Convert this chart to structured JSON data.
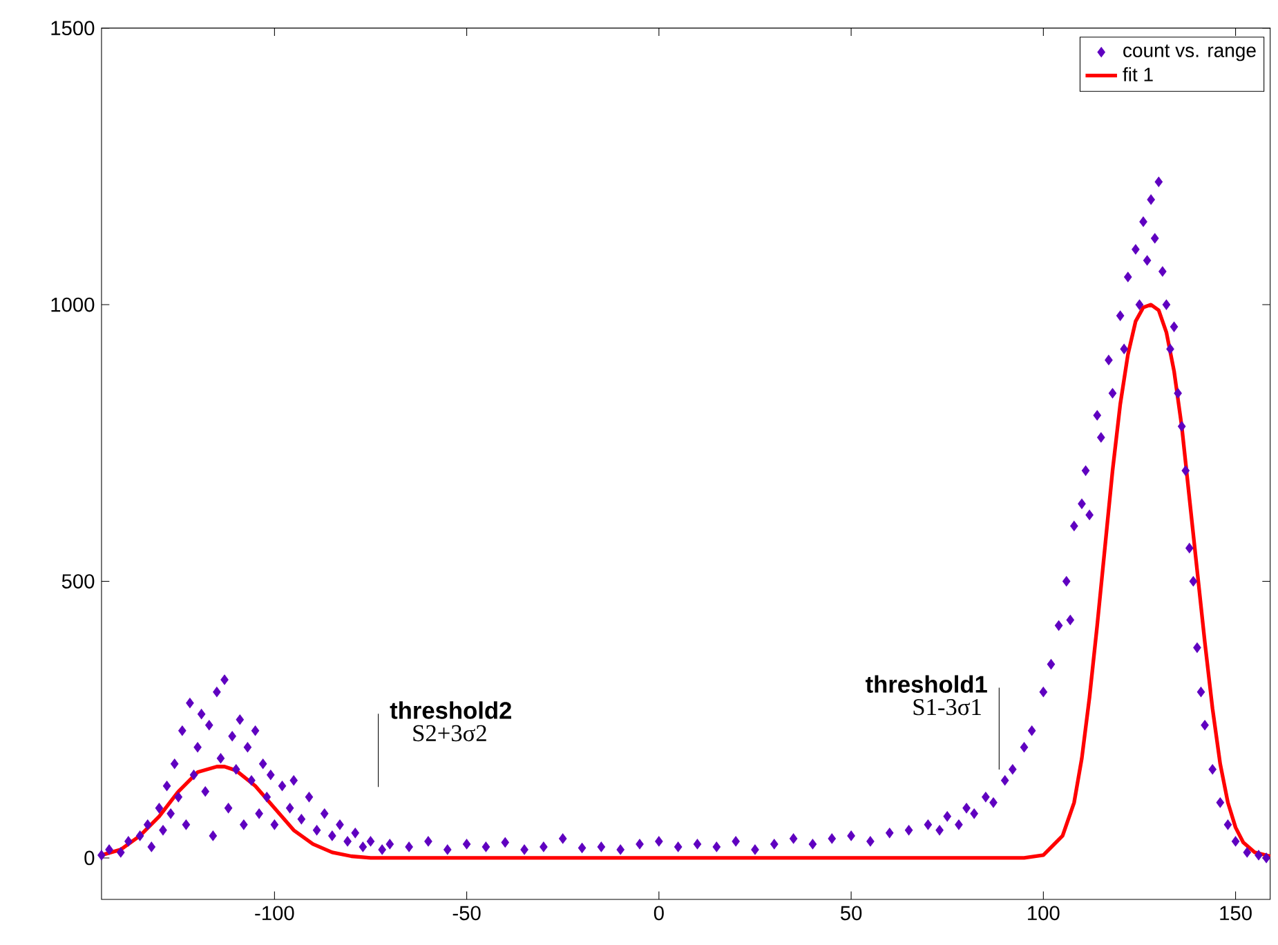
{
  "chart_data": {
    "type": "scatter",
    "xlim": [
      -145,
      159
    ],
    "ylim": [
      -75,
      1500
    ],
    "xticks": [
      -100,
      -50,
      0,
      50,
      100,
      150
    ],
    "yticks": [
      0,
      500,
      1000,
      1500
    ],
    "legend": "top right",
    "grid": false,
    "series": [
      {
        "name": "count vs. range",
        "marker": "diamond",
        "color": "#5f00c0",
        "x": [
          -145,
          -143,
          -140,
          -138,
          -135,
          -133,
          -132,
          -130,
          -129,
          -128,
          -127,
          -126,
          -125,
          -124,
          -123,
          -122,
          -121,
          -120,
          -119,
          -118,
          -117,
          -116,
          -115,
          -114,
          -113,
          -112,
          -111,
          -110,
          -109,
          -108,
          -107,
          -106,
          -105,
          -104,
          -103,
          -102,
          -101,
          -100,
          -98,
          -96,
          -95,
          -93,
          -91,
          -89,
          -87,
          -85,
          -83,
          -81,
          -79,
          -77,
          -75,
          -72,
          -70,
          -65,
          -60,
          -55,
          -50,
          -45,
          -40,
          -35,
          -30,
          -25,
          -20,
          -15,
          -10,
          -5,
          0,
          5,
          10,
          15,
          20,
          25,
          30,
          35,
          40,
          45,
          50,
          55,
          60,
          65,
          70,
          73,
          75,
          78,
          80,
          82,
          85,
          87,
          90,
          92,
          95,
          97,
          100,
          102,
          104,
          106,
          107,
          108,
          110,
          111,
          112,
          114,
          115,
          117,
          118,
          120,
          121,
          122,
          124,
          125,
          126,
          127,
          128,
          129,
          130,
          131,
          132,
          133,
          134,
          135,
          136,
          137,
          138,
          139,
          140,
          141,
          142,
          144,
          146,
          148,
          150,
          153,
          156,
          158
        ],
        "values": [
          5,
          15,
          10,
          30,
          40,
          60,
          20,
          90,
          50,
          130,
          80,
          170,
          110,
          230,
          60,
          280,
          150,
          200,
          260,
          120,
          240,
          40,
          300,
          180,
          322,
          90,
          220,
          160,
          250,
          60,
          200,
          140,
          230,
          80,
          170,
          110,
          150,
          60,
          130,
          90,
          140,
          70,
          110,
          50,
          80,
          40,
          60,
          30,
          45,
          20,
          30,
          15,
          25,
          20,
          30,
          15,
          25,
          20,
          28,
          15,
          20,
          35,
          18,
          20,
          15,
          25,
          30,
          20,
          25,
          20,
          30,
          15,
          25,
          35,
          25,
          35,
          40,
          30,
          45,
          50,
          60,
          50,
          75,
          60,
          90,
          80,
          110,
          100,
          140,
          160,
          200,
          230,
          300,
          350,
          420,
          500,
          430,
          600,
          640,
          700,
          620,
          800,
          760,
          900,
          840,
          980,
          920,
          1050,
          1100,
          1000,
          1150,
          1080,
          1190,
          1120,
          1222,
          1060,
          1000,
          920,
          960,
          840,
          780,
          700,
          560,
          500,
          380,
          300,
          240,
          160,
          100,
          60,
          30,
          10,
          5,
          0
        ]
      },
      {
        "name": "fit 1",
        "type": "line",
        "line_style": "solid",
        "marker": "none",
        "color": "#ff0000",
        "x": [
          -145,
          -140,
          -135,
          -130,
          -125,
          -120,
          -115,
          -113,
          -110,
          -105,
          -100,
          -95,
          -90,
          -85,
          -80,
          -75,
          -50,
          0,
          50,
          95,
          100,
          105,
          108,
          110,
          112,
          114,
          116,
          118,
          120,
          122,
          124,
          126,
          128,
          130,
          132,
          134,
          136,
          138,
          140,
          142,
          144,
          146,
          148,
          150,
          152,
          155,
          159
        ],
        "values": [
          5,
          15,
          40,
          75,
          120,
          155,
          165,
          165,
          158,
          130,
          90,
          50,
          25,
          10,
          3,
          0,
          0,
          0,
          0,
          0,
          5,
          40,
          100,
          180,
          290,
          420,
          560,
          700,
          820,
          910,
          970,
          995,
          1000,
          990,
          950,
          880,
          780,
          650,
          520,
          390,
          270,
          170,
          100,
          55,
          28,
          10,
          3
        ]
      }
    ],
    "ref_lines": [
      {
        "axis": "x",
        "value": -73,
        "label": "threshold2"
      },
      {
        "axis": "x",
        "value": 88.5,
        "label": "threshold1"
      }
    ],
    "annotations": [
      "S2+3σ2",
      "S1-3σ1"
    ]
  }
}
